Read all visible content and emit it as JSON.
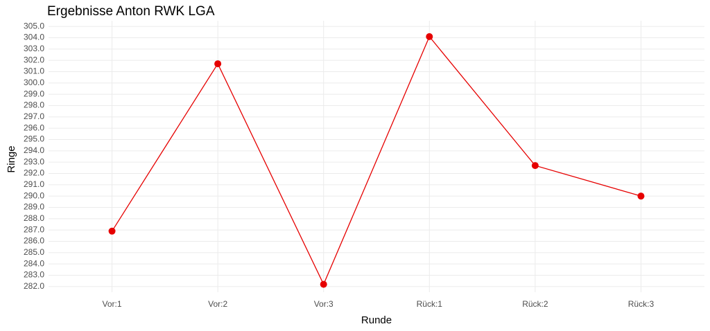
{
  "chart_data": {
    "type": "line",
    "title": "Ergebnisse Anton RWK LGA",
    "x_label": "Runde",
    "y_label": "Ringe",
    "categories": [
      "Vor:1",
      "Vor:2",
      "Vor:3",
      "Rück:1",
      "Rück:2",
      "Rück:3"
    ],
    "values": [
      286.9,
      301.7,
      282.2,
      304.1,
      292.7,
      290.0
    ],
    "color": "#e60000",
    "ylim": [
      281.5,
      305.5
    ],
    "yticks": [
      {
        "value": 282,
        "label": "282.0"
      },
      {
        "value": 283,
        "label": "283.0"
      },
      {
        "value": 284,
        "label": "284.0"
      },
      {
        "value": 285,
        "label": "285.0"
      },
      {
        "value": 286,
        "label": "286.0"
      },
      {
        "value": 287,
        "label": "287.0"
      },
      {
        "value": 288,
        "label": "288.0"
      },
      {
        "value": 289,
        "label": "289.0"
      },
      {
        "value": 290,
        "label": "290.0"
      },
      {
        "value": 291,
        "label": "291.0"
      },
      {
        "value": 292,
        "label": "292.0"
      },
      {
        "value": 293,
        "label": "293.0"
      },
      {
        "value": 294,
        "label": "294.0"
      },
      {
        "value": 295,
        "label": "295.0"
      },
      {
        "value": 296,
        "label": "296.0"
      },
      {
        "value": 297,
        "label": "297.0"
      },
      {
        "value": 298,
        "label": "298.0"
      },
      {
        "value": 299,
        "label": "299.0"
      },
      {
        "value": 300,
        "label": "300.0"
      },
      {
        "value": 301,
        "label": "301.0"
      },
      {
        "value": 302,
        "label": "302.0"
      },
      {
        "value": 303,
        "label": "303.0"
      },
      {
        "value": 304,
        "label": "304.0"
      },
      {
        "value": 305,
        "label": "305.0"
      }
    ],
    "grid": true
  }
}
